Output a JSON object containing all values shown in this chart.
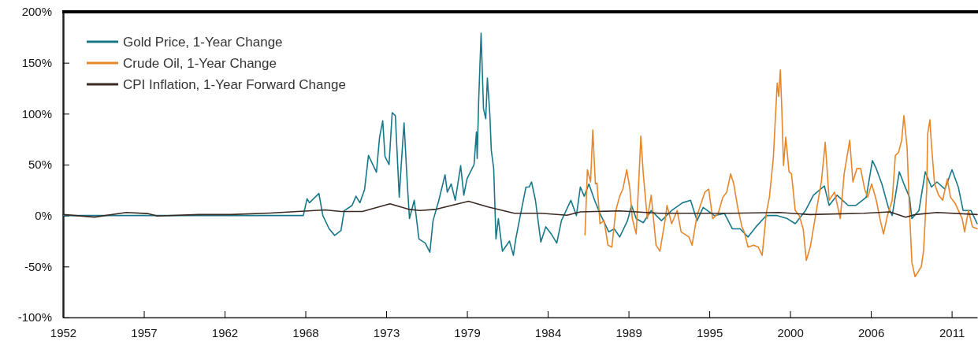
{
  "chart_data": {
    "type": "line",
    "legend": "top left",
    "marker": "none",
    "line_style": "solid",
    "grid": false,
    "xlim": [
      1951.72,
      2012.6
    ],
    "xticks": [
      {
        "value": 1951.72,
        "label": "1952"
      },
      {
        "value": 1957.1,
        "label": "1957"
      },
      {
        "value": 1962.48,
        "label": "1962"
      },
      {
        "value": 1967.86,
        "label": "1968"
      },
      {
        "value": 1973.24,
        "label": "1973"
      },
      {
        "value": 1978.62,
        "label": "1979"
      },
      {
        "value": 1984,
        "label": "1984"
      },
      {
        "value": 1989.38,
        "label": "1989"
      },
      {
        "value": 1994.76,
        "label": "1995"
      },
      {
        "value": 2000.14,
        "label": "2000"
      },
      {
        "value": 2005.52,
        "label": "2006"
      },
      {
        "value": 2010.9,
        "label": "2011"
      }
    ],
    "ylim": [
      -100,
      200
    ],
    "yticks": [
      {
        "value": -100,
        "label": "-100%"
      },
      {
        "value": -50,
        "label": "-50%"
      },
      {
        "value": 0,
        "label": "0%"
      },
      {
        "value": 50,
        "label": "50%"
      },
      {
        "value": 100,
        "label": "100%"
      },
      {
        "value": 150,
        "label": "150%"
      },
      {
        "value": 200,
        "label": "200%"
      }
    ],
    "series": [
      {
        "name": "Gold Price, 1-Year Change",
        "color": "#17788a",
        "x": [
          1951.72,
          1967.72,
          1967.97,
          1968.13,
          1968.76,
          1969.02,
          1969.44,
          1969.81,
          1970.23,
          1970.44,
          1970.97,
          1971.23,
          1971.49,
          1971.8,
          1972.06,
          1972.59,
          1972.8,
          1973.01,
          1973.16,
          1973.43,
          1973.64,
          1973.85,
          1974.11,
          1974.22,
          1974.43,
          1974.64,
          1974.79,
          1975.11,
          1975.42,
          1975.84,
          1976.15,
          1976.36,
          1976.73,
          1977.16,
          1977.31,
          1977.57,
          1977.84,
          1978.2,
          1978.41,
          1978.62,
          1979.09,
          1979.25,
          1979.3,
          1979.4,
          1979.56,
          1979.72,
          1979.87,
          1979.98,
          1980.14,
          1980.24,
          1980.4,
          1980.55,
          1980.71,
          1980.98,
          1981.45,
          1981.71,
          1981.87,
          1982.13,
          1982.55,
          1982.76,
          1982.92,
          1983.18,
          1983.54,
          1983.87,
          1984.23,
          1984.6,
          1984.91,
          1985.54,
          1985.91,
          1986.17,
          1986.43,
          1986.74,
          1987.12,
          1987.48,
          1988.06,
          1988.43,
          1988.79,
          1989.31,
          1989.58,
          1989.89,
          1990.36,
          1990.89,
          1991.57,
          1992.25,
          1992.98,
          1993.51,
          1993.94,
          1994.35,
          1995.09,
          1995.77,
          1996.29,
          1996.81,
          1997.34,
          1997.87,
          1998.55,
          1999.28,
          1999.96,
          2000.48,
          2001.17,
          2001.69,
          2002.42,
          2002.74,
          2003.27,
          2004,
          2004.53,
          2005.21,
          2005.62,
          2005.88,
          2006.25,
          2006.68,
          2006.94,
          2007.41,
          2007.72,
          2008.09,
          2008.25,
          2008.72,
          2009.14,
          2009.55,
          2009.92,
          2010.45,
          2010.92,
          2011.34,
          2011.66,
          2012.18,
          2012.6
        ],
        "values": [
          0,
          0,
          16.5,
          12.6,
          21.7,
          0,
          -13,
          -19.5,
          -14.6,
          4.7,
          10,
          19,
          12.6,
          25.5,
          59,
          42.5,
          77,
          93,
          58,
          50,
          101,
          98,
          18,
          45,
          91,
          33,
          -3,
          15,
          -23,
          -27,
          -36,
          -5,
          14,
          40,
          23,
          31,
          15,
          49,
          20,
          36,
          50,
          82,
          56,
          113,
          179,
          105,
          95,
          135,
          100,
          64,
          46,
          -23,
          -3,
          -35,
          -25,
          -39,
          -23,
          -3,
          28,
          28,
          33,
          15,
          -26,
          -11,
          -18,
          -27,
          -5,
          15,
          0,
          28,
          19,
          31,
          15,
          2,
          -16,
          -13,
          -21,
          -5,
          10,
          -3,
          -7,
          5,
          -5,
          5,
          12.6,
          15,
          -5,
          8,
          0,
          2,
          -13,
          -13,
          -21,
          -11,
          0,
          0,
          -3,
          -8,
          5,
          20,
          29,
          10,
          20,
          10,
          10,
          18,
          54,
          46,
          31,
          8,
          0,
          43,
          31,
          18,
          -3,
          5,
          43,
          28,
          33,
          26,
          45,
          28,
          5,
          5,
          -8
        ]
      },
      {
        "name": "Crude Oil, 1-Year Change",
        "color": "#e8862a",
        "x": [
          1986.48,
          1986.64,
          1986.85,
          1987,
          1987.17,
          1987.28,
          1987.48,
          1987.75,
          1988.01,
          1988.27,
          1988.53,
          1988.79,
          1989,
          1989.26,
          1989.47,
          1989.63,
          1989.89,
          1990.1,
          1990.2,
          1990.36,
          1990.63,
          1990.89,
          1991.21,
          1991.47,
          1991.83,
          1991.94,
          1992.25,
          1992.62,
          1992.88,
          1993.4,
          1993.61,
          1993.94,
          1994.46,
          1994.72,
          1994.98,
          1995.35,
          1995.66,
          1995.92,
          1996.18,
          1996.39,
          1996.65,
          1996.93,
          1997.08,
          1997.34,
          1997.71,
          1998.02,
          1998.28,
          1998.55,
          1998.76,
          1999.02,
          1999.28,
          1999.38,
          1999.49,
          1999.59,
          1999.7,
          1999.85,
          2000.07,
          2000.23,
          2000.48,
          2000.75,
          2001.01,
          2001.22,
          2001.48,
          2001.8,
          2002.22,
          2002.48,
          2002.74,
          2003.1,
          2003.48,
          2003.74,
          2004.11,
          2004.32,
          2004.58,
          2004.84,
          2005.1,
          2005.31,
          2005.57,
          2005.88,
          2006.15,
          2006.36,
          2006.62,
          2006.94,
          2007.15,
          2007.36,
          2007.57,
          2007.72,
          2007.93,
          2008.09,
          2008.25,
          2008.46,
          2008.72,
          2008.88,
          2009.03,
          2009.24,
          2009.3,
          2009.45,
          2009.55,
          2009.76,
          2010.03,
          2010.3,
          2010.61,
          2010.82,
          2011.13,
          2011.6,
          2011.76,
          2012.02,
          2012.28,
          2012.6
        ],
        "values": [
          -19,
          45,
          33,
          84,
          31,
          32,
          -8,
          -5,
          -29,
          -31,
          5,
          19,
          26,
          45,
          26,
          -3,
          -18,
          46,
          78,
          41,
          -3,
          20,
          -29,
          -35,
          -3,
          10,
          -8,
          5,
          -16,
          -21,
          -29,
          0,
          23,
          26,
          -3,
          2,
          18,
          23,
          41,
          31,
          8,
          -11,
          -16,
          -31,
          -29,
          -31,
          -39,
          2,
          18,
          56,
          130,
          117,
          143,
          103,
          49,
          77,
          43,
          41,
          5,
          0,
          -13,
          -44,
          -31,
          -3,
          33,
          72,
          15,
          23,
          -3,
          41,
          74,
          33,
          46,
          46,
          26,
          18,
          31,
          15,
          -5,
          -18,
          0,
          15,
          59,
          62,
          74,
          98,
          67,
          5,
          -46,
          -60,
          -54,
          -50,
          -34,
          26,
          80,
          94,
          70,
          31,
          20,
          15,
          36,
          18,
          12,
          -3,
          -16,
          5,
          -11,
          -13
        ]
      },
      {
        "name": "CPI Inflation, 1-Year Forward Change",
        "color": "#3a2a22",
        "x": [
          1951.72,
          1953.82,
          1955.93,
          1957.33,
          1958.01,
          1960.75,
          1962.89,
          1965.51,
          1969.18,
          1970.23,
          1971.65,
          1973.49,
          1974.79,
          1975.49,
          1976.49,
          1978.72,
          1980.03,
          1981.77,
          1983.55,
          1985.28,
          1986.17,
          1988.79,
          1991.44,
          1996.25,
          1999.43,
          2001.47,
          2005.05,
          2006.78,
          2007.83,
          2008.49,
          2009.92,
          2012.6
        ],
        "values": [
          1,
          -1.5,
          3,
          2,
          -0.5,
          1,
          1,
          2.5,
          5.5,
          4,
          4,
          11.6,
          6,
          5,
          6,
          14,
          8.5,
          2.3,
          2.3,
          0.3,
          3.6,
          4.6,
          2.3,
          2.3,
          3,
          1,
          2.3,
          3.6,
          -1.6,
          1,
          3,
          1
        ]
      }
    ]
  }
}
